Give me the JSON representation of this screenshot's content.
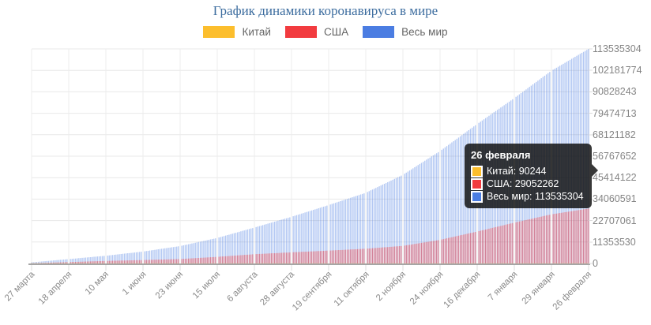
{
  "chart_data": {
    "type": "bar",
    "title": "График динамики коронавируса в мире",
    "x_tick_labels": [
      "27 марта",
      "18 апреля",
      "10 мая",
      "1 июня",
      "23 июня",
      "15 июля",
      "6 августа",
      "28 августа",
      "19 сентября",
      "11 октября",
      "2 ноября",
      "24 ноября",
      "16 декабря",
      "7 января",
      "29 января",
      "26 февраля"
    ],
    "y_tick_labels": [
      "0",
      "11353530",
      "22707061",
      "34060591",
      "45414122",
      "56767652",
      "68121182",
      "79474713",
      "90828243",
      "102181774",
      "113535304"
    ],
    "ylim": [
      0,
      113535304
    ],
    "grid": true,
    "legend_position": "top",
    "bars_per_segment": 22,
    "series": [
      {
        "key": "china",
        "name": "Китай",
        "color": "#fcbe2d",
        "bar_opacity": 0.85,
        "values_at_ticks": [
          81897,
          82804,
          83990,
          84602,
          85119,
          85622,
          87655,
          88500,
          89000,
          89300,
          89500,
          89700,
          89900,
          90000,
          90100,
          90244
        ]
      },
      {
        "key": "usa",
        "name": "США",
        "color": "#f23b3f",
        "bar_opacity": 0.5,
        "values_at_ticks": [
          100000,
          740000,
          1350000,
          1820000,
          2350000,
          3500000,
          4900000,
          5900000,
          6800000,
          7800000,
          9300000,
          12500000,
          16900000,
          21600000,
          26000000,
          29052262
        ]
      },
      {
        "key": "world",
        "name": "Весь мир",
        "color": "#4b7de2",
        "bar_opacity": 0.42,
        "values_at_ticks": [
          590000,
          2300000,
          4100000,
          6300000,
          9200000,
          13500000,
          19000000,
          24700000,
          30900000,
          37400000,
          46900000,
          59500000,
          73800000,
          87500000,
          102000000,
          113535304
        ]
      }
    ]
  },
  "tooltip": {
    "title": "26 февраля",
    "rows": [
      {
        "name": "Китай",
        "value": "90244",
        "color": "#fcbe2d"
      },
      {
        "name": "США",
        "value": "29052262",
        "color": "#f23b3f"
      },
      {
        "name": "Весь мир",
        "value": "113535304",
        "color": "#4b7de2"
      }
    ]
  }
}
